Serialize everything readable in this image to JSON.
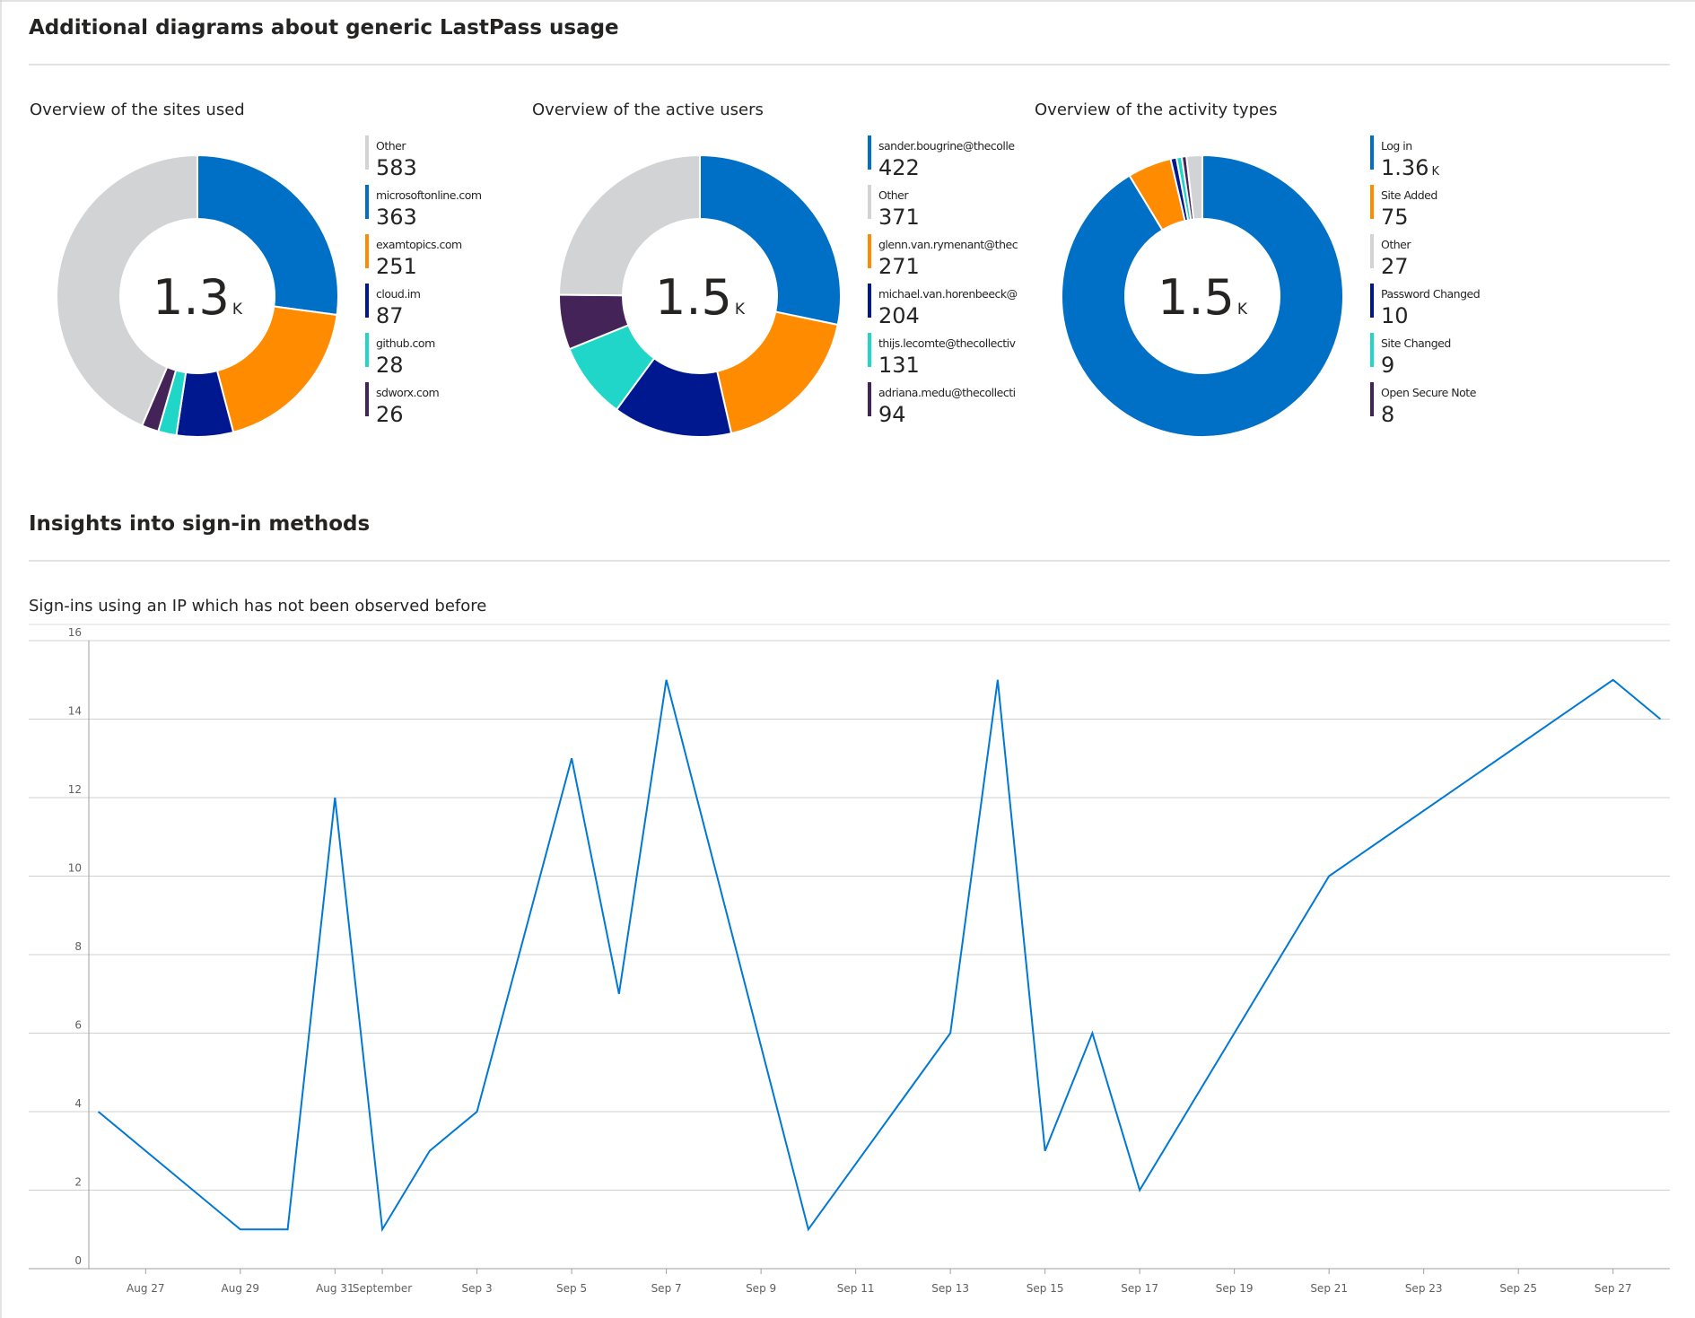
{
  "headers": [
    "Additional diagrams about generic LastPass usage",
    "Insights into sign-in methods"
  ],
  "chart_data": [
    {
      "type": "donut",
      "title": "Overview of the sites used",
      "center_label": "1.3K",
      "categories": [
        "Other",
        "microsoftonline.com",
        "examtopics.com",
        "cloud.im",
        "github.com",
        "sdworx.com"
      ],
      "values": [
        583,
        363,
        251,
        87,
        28,
        26
      ],
      "colors": [
        "#d2d3d5",
        "#0070c6",
        "#ff8c00",
        "#00188f",
        "#1fd6c9",
        "#442359"
      ]
    },
    {
      "type": "donut",
      "title": "Overview of the active users",
      "center_label": "1.5K",
      "categories": [
        "sander.bougrine@thecolle",
        "Other",
        "glenn.van.rymenant@thec",
        "michael.van.horenbeeck@",
        "thijs.lecomte@thecollectiv",
        "adriana.medu@thecollecti"
      ],
      "values": [
        422,
        371,
        271,
        204,
        131,
        94
      ],
      "colors": [
        "#0070c6",
        "#d2d3d5",
        "#ff8c00",
        "#00188f",
        "#1fd6c9",
        "#442359"
      ]
    },
    {
      "type": "donut",
      "title": "Overview of the activity types",
      "center_label": "1.5K",
      "categories": [
        "Log in",
        "Site Added",
        "Other",
        "Password Changed",
        "Site Changed",
        "Open Secure Note"
      ],
      "values": [
        1360,
        75,
        27,
        10,
        9,
        8
      ],
      "value_labels": [
        "1.36K",
        "75",
        "27",
        "10",
        "9",
        "8"
      ],
      "colors": [
        "#0070c6",
        "#ff8c00",
        "#d2d3d5",
        "#00188f",
        "#1fd6c9",
        "#442359"
      ]
    },
    {
      "type": "line",
      "title": "Sign-ins using an IP which has not been observed before",
      "x": [
        "Aug 26",
        "Aug 29",
        "Aug 30",
        "Aug 31",
        "Sep 1",
        "Sep 2",
        "Sep 3",
        "Sep 5",
        "Sep 6",
        "Sep 7",
        "Sep 10",
        "Sep 13",
        "Sep 14",
        "Sep 15",
        "Sep 16",
        "Sep 17",
        "Sep 21",
        "Sep 27",
        "Sep 28"
      ],
      "values": [
        4,
        1,
        1,
        12,
        1,
        3,
        4,
        13,
        7,
        15,
        1,
        6,
        15,
        3,
        6,
        2,
        10,
        15,
        14
      ],
      "color": "#0078d4",
      "xlim": [
        "Aug 26",
        "Sep 28"
      ],
      "xticks": [
        "Aug 27",
        "Aug 29",
        "Aug 31",
        {
          "value": "Sep 1",
          "label": "September"
        },
        "Sep 3",
        "Sep 5",
        "Sep 7",
        "Sep 9",
        "Sep 11",
        "Sep 13",
        "Sep 15",
        "Sep 17",
        "Sep 19",
        "Sep 21",
        "Sep 23",
        "Sep 25",
        "Sep 27"
      ],
      "ylim": [
        0,
        16
      ],
      "yticks": [
        0,
        2,
        4,
        6,
        8,
        10,
        12,
        14,
        16
      ],
      "grid": true
    }
  ]
}
